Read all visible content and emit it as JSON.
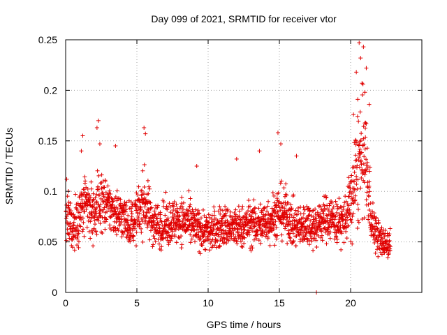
{
  "chart_data": {
    "type": "scatter",
    "title": "Day 099 of 2021, SRMTID for receiver vtor",
    "xlabel": "GPS time / hours",
    "ylabel": "SRMTID / TECUs",
    "xlim": [
      0,
      25
    ],
    "ylim": [
      0,
      0.25
    ],
    "x_ticks": [
      0,
      5,
      10,
      15,
      20
    ],
    "x_tick_labels": [
      "0",
      "5",
      "10",
      "15",
      "20"
    ],
    "y_ticks": [
      0,
      0.05,
      0.1,
      0.15,
      0.2,
      0.25
    ],
    "y_tick_labels": [
      "0",
      "0.05",
      "0.1",
      "0.15",
      "0.2",
      "0.25"
    ],
    "grid": true,
    "marker": "plus",
    "color": "#e00000",
    "series": [
      {
        "name": "SRMTID",
        "profile": [
          [
            0.0,
            0.08,
            0.022
          ],
          [
            0.5,
            0.062,
            0.02
          ],
          [
            1.0,
            0.078,
            0.024
          ],
          [
            1.5,
            0.085,
            0.024
          ],
          [
            2.0,
            0.078,
            0.025
          ],
          [
            2.5,
            0.092,
            0.023
          ],
          [
            3.0,
            0.084,
            0.02
          ],
          [
            3.5,
            0.08,
            0.02
          ],
          [
            4.0,
            0.075,
            0.019
          ],
          [
            4.5,
            0.068,
            0.017
          ],
          [
            5.0,
            0.075,
            0.02
          ],
          [
            5.5,
            0.092,
            0.025
          ],
          [
            6.0,
            0.072,
            0.02
          ],
          [
            6.5,
            0.066,
            0.018
          ],
          [
            7.0,
            0.068,
            0.018
          ],
          [
            7.5,
            0.07,
            0.018
          ],
          [
            8.0,
            0.072,
            0.019
          ],
          [
            8.5,
            0.07,
            0.018
          ],
          [
            9.0,
            0.065,
            0.017
          ],
          [
            9.5,
            0.062,
            0.016
          ],
          [
            10.0,
            0.06,
            0.016
          ],
          [
            10.5,
            0.062,
            0.017
          ],
          [
            11.0,
            0.066,
            0.017
          ],
          [
            11.5,
            0.065,
            0.017
          ],
          [
            12.0,
            0.063,
            0.017
          ],
          [
            12.5,
            0.066,
            0.017
          ],
          [
            13.0,
            0.068,
            0.018
          ],
          [
            13.5,
            0.066,
            0.018
          ],
          [
            14.0,
            0.07,
            0.019
          ],
          [
            14.5,
            0.074,
            0.02
          ],
          [
            15.0,
            0.08,
            0.022
          ],
          [
            15.5,
            0.078,
            0.02
          ],
          [
            16.0,
            0.066,
            0.018
          ],
          [
            16.5,
            0.064,
            0.017
          ],
          [
            17.0,
            0.07,
            0.018
          ],
          [
            17.5,
            0.065,
            0.017
          ],
          [
            18.0,
            0.072,
            0.018
          ],
          [
            18.5,
            0.075,
            0.019
          ],
          [
            19.0,
            0.07,
            0.018
          ],
          [
            19.5,
            0.07,
            0.018
          ],
          [
            20.0,
            0.085,
            0.03
          ],
          [
            20.5,
            0.125,
            0.05
          ],
          [
            21.0,
            0.135,
            0.045
          ],
          [
            21.5,
            0.07,
            0.02
          ],
          [
            22.0,
            0.052,
            0.014
          ],
          [
            22.5,
            0.048,
            0.012
          ],
          [
            22.8,
            0.048,
            0.012
          ]
        ],
        "outliers": [
          [
            20.6,
            0.247
          ],
          [
            20.9,
            0.243
          ],
          [
            20.7,
            0.232
          ],
          [
            21.1,
            0.222
          ],
          [
            20.4,
            0.218
          ],
          [
            20.8,
            0.207
          ],
          [
            21.0,
            0.198
          ],
          [
            20.5,
            0.191
          ],
          [
            21.3,
            0.186
          ],
          [
            20.2,
            0.176
          ],
          [
            2.3,
            0.17
          ],
          [
            2.2,
            0.163
          ],
          [
            5.5,
            0.163
          ],
          [
            5.6,
            0.157
          ],
          [
            1.2,
            0.155
          ],
          [
            14.9,
            0.158
          ],
          [
            3.5,
            0.145
          ],
          [
            2.4,
            0.147
          ],
          [
            15.1,
            0.147
          ],
          [
            1.1,
            0.14
          ],
          [
            13.6,
            0.14
          ],
          [
            16.2,
            0.135
          ],
          [
            12.0,
            0.132
          ],
          [
            9.2,
            0.125
          ],
          [
            17.6,
            0.0
          ]
        ]
      }
    ]
  }
}
